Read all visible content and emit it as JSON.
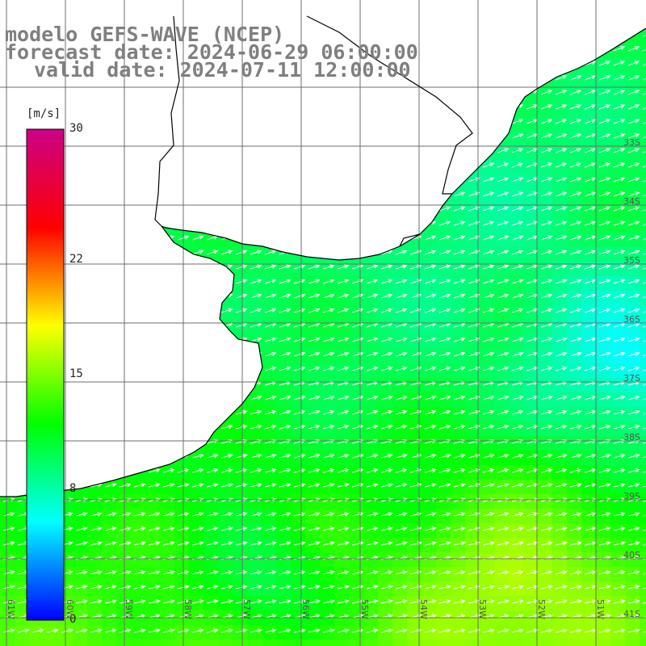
{
  "header": {
    "line1": "modelo GEFS-WAVE (NCEP)",
    "line2": "forecast date: 2024-06-29 06:00:00",
    "line3": "valid date: 2024-07-11 12:00:00"
  },
  "colorbar": {
    "unit": "[m/s]",
    "min": 0,
    "max": 30,
    "ticks": [
      "30",
      "22",
      "15",
      "8",
      "0"
    ],
    "tick_values": [
      30,
      22,
      15,
      8,
      0
    ],
    "stops": [
      "#0000ff",
      "#00ffff",
      "#00ff00",
      "#ffff00",
      "#ff0000",
      "#cc0088"
    ]
  },
  "map": {
    "lat_labels": [
      "33S",
      "34S",
      "35S",
      "36S",
      "37S",
      "38S",
      "39S",
      "40S",
      "41S"
    ],
    "lon_labels": [
      "61W",
      "60W",
      "59W",
      "58W",
      "57W",
      "56W",
      "55W",
      "54W",
      "53W",
      "52W",
      "51W"
    ],
    "land_color": "#ffffff",
    "coast_color": "#000000",
    "grid_color": "#6e6e6e",
    "arrow_color": "#ffffff",
    "wind_direction": "toward east-northeast"
  }
}
